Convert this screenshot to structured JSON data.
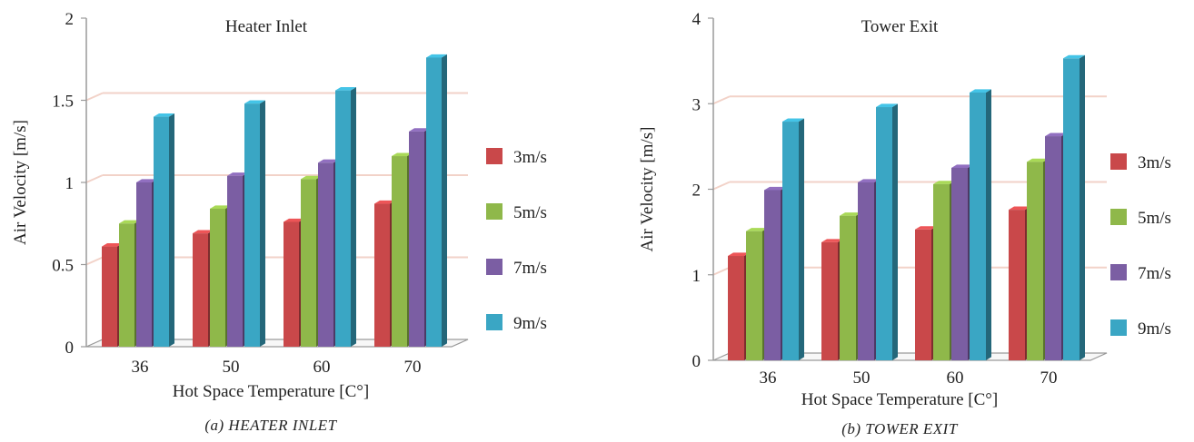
{
  "chart_data": [
    {
      "type": "bar",
      "title": "Heater Inlet",
      "caption": "(a) HEATER INLET",
      "xlabel": "Hot Space Temperature [C°]",
      "ylabel": "Air Velocity [m/s]",
      "categories": [
        "36",
        "50",
        "60",
        "70"
      ],
      "ylim": [
        0,
        2
      ],
      "yticks": [
        "0",
        "0.5",
        "1",
        "1.5",
        "2"
      ],
      "series": [
        {
          "name": "3m/s",
          "color": "#c9484a",
          "values": [
            0.61,
            0.69,
            0.76,
            0.87
          ]
        },
        {
          "name": "5m/s",
          "color": "#8fb84a",
          "values": [
            0.75,
            0.84,
            1.02,
            1.16
          ]
        },
        {
          "name": "7m/s",
          "color": "#7b5ea3",
          "values": [
            1.0,
            1.04,
            1.12,
            1.31
          ]
        },
        {
          "name": "9m/s",
          "color": "#3aa6c4",
          "values": [
            1.4,
            1.48,
            1.56,
            1.76
          ]
        }
      ],
      "grid": true,
      "legend_position": "right"
    },
    {
      "type": "bar",
      "title": "Tower Exit",
      "caption": "(b) TOWER EXIT",
      "xlabel": "Hot Space Temperature [C°]",
      "ylabel": "Air Velocity [m/s]",
      "categories": [
        "36",
        "50",
        "60",
        "70"
      ],
      "ylim": [
        0,
        4
      ],
      "yticks": [
        "0",
        "1",
        "2",
        "3",
        "4"
      ],
      "series": [
        {
          "name": "3m/s",
          "color": "#c9484a",
          "values": [
            1.22,
            1.38,
            1.53,
            1.76
          ]
        },
        {
          "name": "5m/s",
          "color": "#8fb84a",
          "values": [
            1.51,
            1.69,
            2.06,
            2.32
          ]
        },
        {
          "name": "7m/s",
          "color": "#7b5ea3",
          "values": [
            1.99,
            2.08,
            2.25,
            2.62
          ]
        },
        {
          "name": "9m/s",
          "color": "#3aa6c4",
          "values": [
            2.79,
            2.96,
            3.13,
            3.53
          ]
        }
      ],
      "grid": true,
      "legend_position": "right"
    }
  ]
}
